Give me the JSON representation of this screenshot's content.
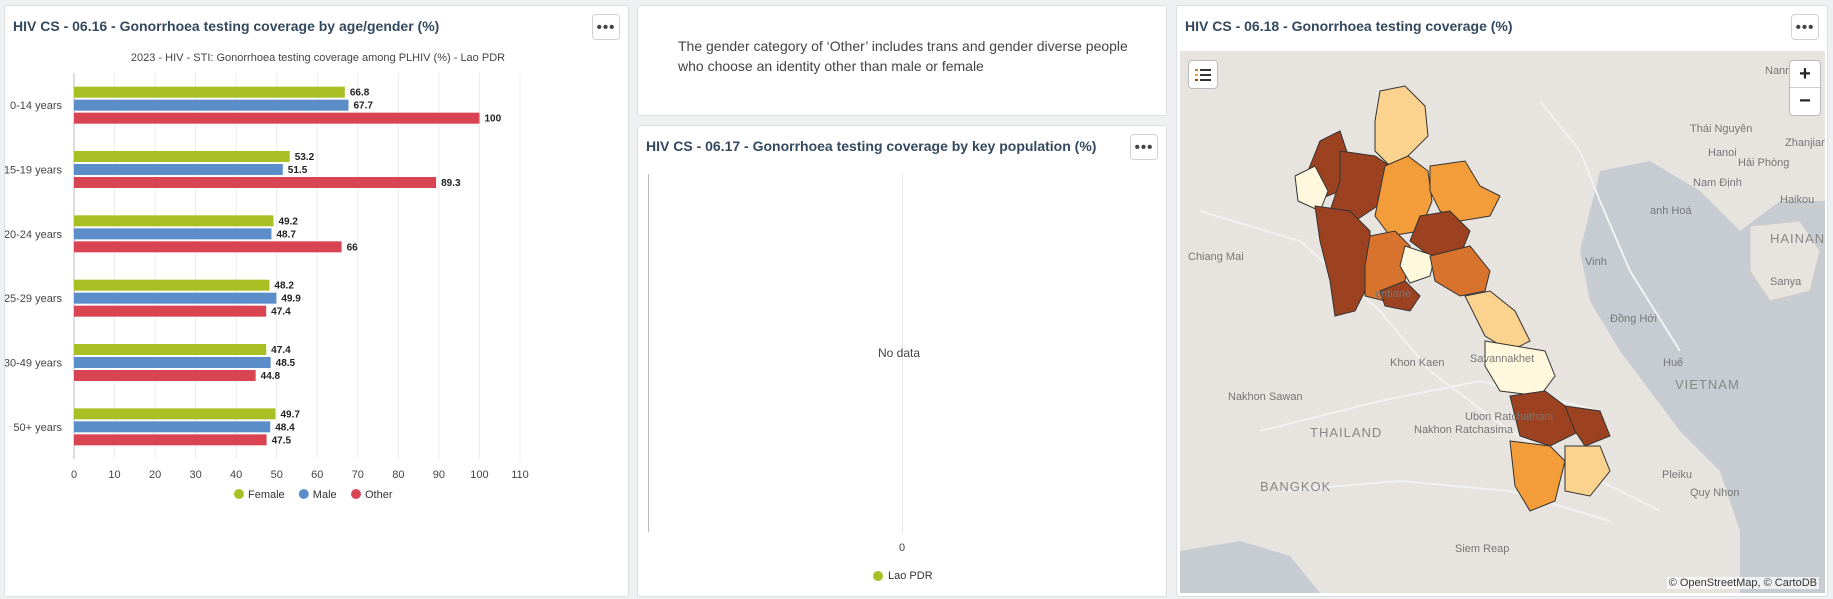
{
  "panel1": {
    "title": "HIV CS - 06.16 - Gonorrhoea testing coverage by age/gender (%)",
    "menu_label": "•••"
  },
  "chart_data": {
    "type": "bar",
    "orientation": "horizontal",
    "title": "2023 - HIV - STI: Gonorrhoea testing coverage among PLHIV (%) - Lao PDR",
    "categories": [
      "0-14 years",
      "15-19 years",
      "20-24 years",
      "25-29 years",
      "30-49 years",
      "50+ years"
    ],
    "series": [
      {
        "name": "Female",
        "color": "#a8c024",
        "values": [
          66.8,
          53.2,
          49.2,
          48.2,
          47.4,
          49.7
        ]
      },
      {
        "name": "Male",
        "color": "#5b8ec9",
        "values": [
          67.7,
          51.5,
          48.7,
          49.9,
          48.5,
          48.4
        ]
      },
      {
        "name": "Other",
        "color": "#d94452",
        "values": [
          100,
          89.3,
          66,
          47.4,
          44.8,
          47.5
        ]
      }
    ],
    "xlim": [
      0,
      110
    ],
    "xticks": [
      0,
      10,
      20,
      30,
      40,
      50,
      60,
      70,
      80,
      90,
      100,
      110
    ],
    "grid": true,
    "legend_position": "bottom"
  },
  "panel2": {
    "note": "The gender category of ‘Other’ includes trans and gender diverse people who choose an identity other than male or female"
  },
  "panel3": {
    "title": "HIV CS - 06.17 - Gonorrhoea testing coverage by key population (%)",
    "menu_label": "•••",
    "no_data": "No data",
    "axis_tick": "0",
    "legend": {
      "name": "Lao PDR",
      "color": "#a8c024"
    }
  },
  "panel4": {
    "title": "HIV CS - 06.18 - Gonorrhoea testing coverage (%)",
    "menu_label": "•••",
    "zoom_in": "+",
    "zoom_out": "−",
    "attribution": "© OpenStreetMap, © CartoDB",
    "labels": {
      "nanning": "Nanning",
      "zhanjiang": "Zhanjiang",
      "thai_nguyen": "Thái Nguyên",
      "hanoi": "Hanoi",
      "hai_phong": "Hải Phòng",
      "nam_dinh": "Nam Định",
      "thanh_hoa": "anh Hoá",
      "haikou": "Haikou",
      "hainan": "HAINAN",
      "chiang_mai": "Chiang Mai",
      "vinh": "Vinh",
      "sanya": "Sanya",
      "vientiane": "entiane",
      "dong_hoi": "Đồng Hới",
      "hue": "Huế",
      "khon_kaen": "Khon Kaen",
      "savannakhet": "Savannakhet",
      "vietnam": "VIETNAM",
      "nakhon_sawan": "Nakhon Sawan",
      "thailand": "THAILAND",
      "ubon": "Ubon Ratchathani",
      "nakhon_ratchasima": "Nakhon Ratchasima",
      "bangkok": "BANGKOK",
      "siem_reap": "Siem Reap",
      "pleiku": "Pleiku",
      "quy_nhon": "Quy Nhon"
    },
    "colors": {
      "darkest": "#9c4220",
      "dark": "#d8732e",
      "medium": "#f39c3a",
      "light": "#fcd28f",
      "lightest": "#fff8dc",
      "water": "#c7ccd2"
    }
  }
}
